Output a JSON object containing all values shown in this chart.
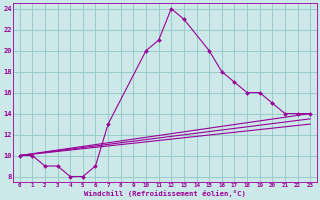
{
  "xlabel": "Windchill (Refroidissement éolien,°C)",
  "background_color": "#cce8e8",
  "grid_color": "#99cccc",
  "line_color": "#990099",
  "xlim": [
    -0.5,
    23.5
  ],
  "ylim": [
    7.5,
    24.5
  ],
  "xticks": [
    0,
    1,
    2,
    3,
    4,
    5,
    6,
    7,
    8,
    9,
    10,
    11,
    12,
    13,
    14,
    15,
    16,
    17,
    18,
    19,
    20,
    21,
    22,
    23
  ],
  "yticks": [
    8,
    10,
    12,
    14,
    16,
    18,
    20,
    22,
    24
  ],
  "series1_x": [
    0,
    1,
    2,
    3,
    4,
    5,
    6,
    7,
    10,
    11,
    12,
    13,
    15,
    16,
    17,
    18,
    19,
    20,
    21,
    22,
    23
  ],
  "series1_y": [
    10,
    10,
    9,
    9,
    8,
    8,
    9,
    13,
    20,
    21,
    24,
    23,
    20,
    18,
    17,
    16,
    16,
    15,
    14,
    14,
    14
  ],
  "line1_x": [
    0,
    23
  ],
  "line1_y": [
    10,
    14
  ],
  "line2_x": [
    0,
    23
  ],
  "line2_y": [
    10,
    13.5
  ],
  "line3_x": [
    0,
    23
  ],
  "line3_y": [
    10,
    13
  ]
}
